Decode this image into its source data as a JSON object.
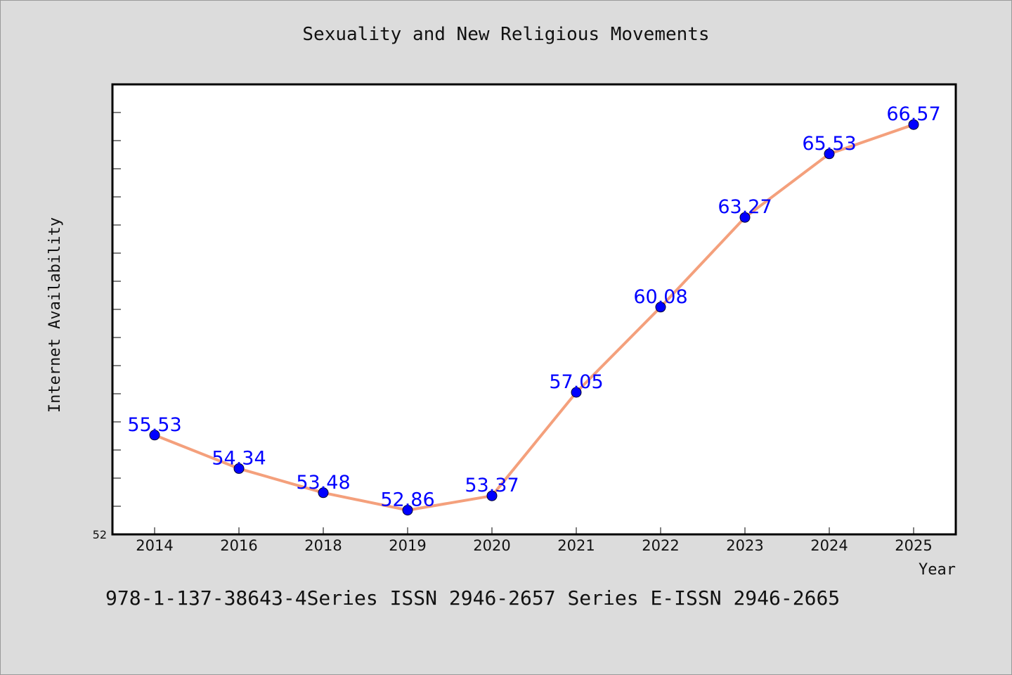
{
  "title": "Sexuality and New Religious Movements",
  "footer": "978-1-137-38643-4Series ISSN 2946-2657 Series E-ISSN 2946-2665",
  "colors": {
    "background": "#dcdcdc",
    "plot_background": "#ffffff",
    "line": "#f4a07c",
    "marker": "#0000ff",
    "data_label": "#0000ff"
  },
  "chart_data": {
    "type": "line",
    "title": "Sexuality and New Religious Movements",
    "xlabel": "Year",
    "ylabel": "Internet Availability",
    "categories": [
      "2014",
      "2016",
      "2018",
      "2019",
      "2020",
      "2021",
      "2022",
      "2023",
      "2024",
      "2025"
    ],
    "series": [
      {
        "values": [
          55.53,
          54.34,
          53.48,
          52.86,
          53.37,
          57.05,
          60.08,
          63.27,
          65.53,
          66.57
        ]
      }
    ],
    "data_labels": [
      "55.53",
      "54.34",
      "53.48",
      "52.86",
      "53.37",
      "57.05",
      "60.08",
      "63.27",
      "65.53",
      "66.57"
    ],
    "ylim": [
      52,
      68
    ],
    "y_tick_labels": [
      "52"
    ],
    "grid": false,
    "legend": "none"
  }
}
